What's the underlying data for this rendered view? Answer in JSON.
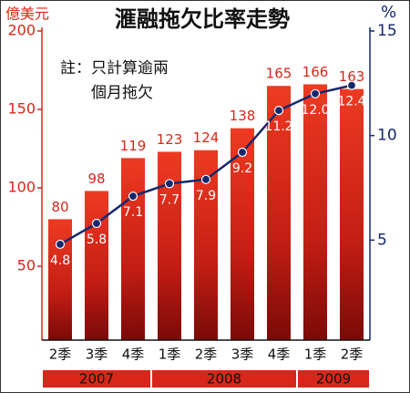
{
  "chart_data": {
    "type": "bar-line",
    "title": "滙融拖欠比率走勢",
    "y_label": "億美元",
    "y2_label": "%",
    "note": [
      "註：只計算逾兩",
      "個月拖欠"
    ],
    "categories": [
      "2季",
      "3季",
      "4季",
      "1季",
      "2季",
      "3季",
      "4季",
      "1季",
      "2季"
    ],
    "year_groups": [
      {
        "label": "2007",
        "span": 3
      },
      {
        "label": "2008",
        "span": 4
      },
      {
        "label": "2009",
        "span": 2
      }
    ],
    "series": [
      {
        "name": "億美元",
        "color": "#d8261a",
        "values": [
          80,
          98,
          119,
          123,
          124,
          138,
          165,
          166,
          163
        ]
      },
      {
        "name": "%",
        "color": "#14286e",
        "axis": "y2",
        "values": [
          4.8,
          5.8,
          7.1,
          7.7,
          7.9,
          9.2,
          11.2,
          12.0,
          12.4
        ],
        "value_labels": [
          "4.8",
          "5.8",
          "7.1",
          "7.7",
          "7.9",
          "9.2",
          "11.2",
          "12.0",
          "12.4"
        ]
      }
    ],
    "ylim": [
      0,
      200
    ],
    "yticks": [
      50,
      100,
      150,
      200
    ],
    "y2lim": [
      0,
      15
    ],
    "y2ticks": [
      5,
      10,
      15
    ]
  }
}
